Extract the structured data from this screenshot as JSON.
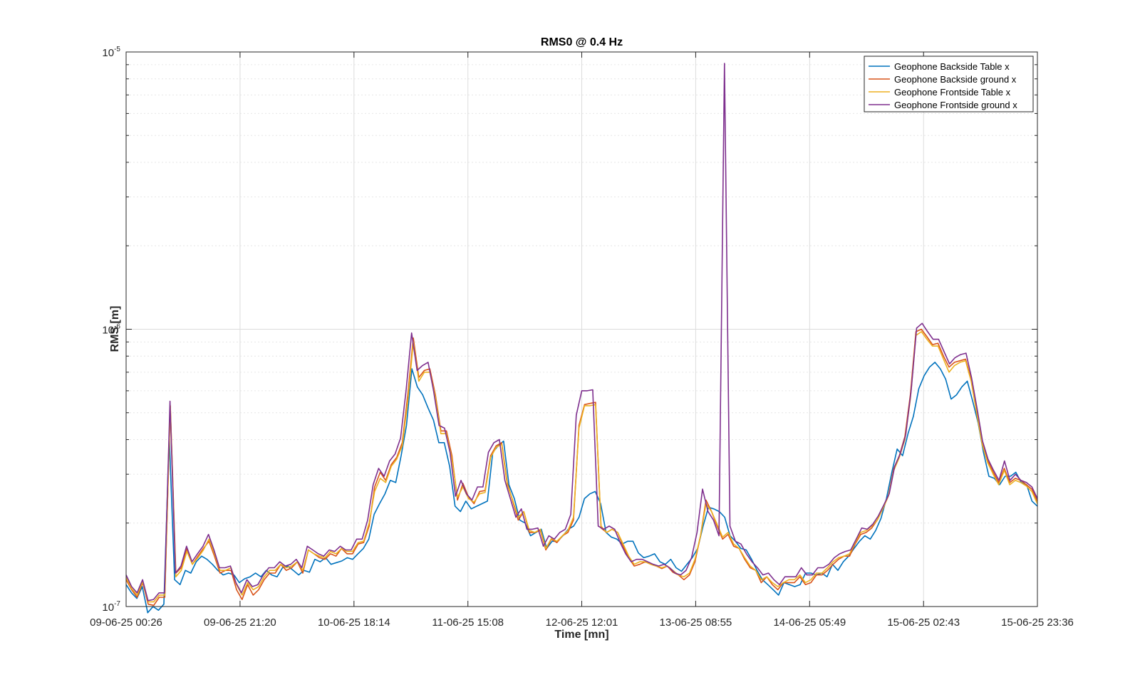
{
  "chart_data": {
    "type": "line",
    "title": "RMS0 @ 0.4 Hz",
    "xlabel": "Time [mn]",
    "ylabel": "RMS [m]",
    "y_scale": "log",
    "ylim": [
      1e-07,
      1e-05
    ],
    "y_ticks": [
      {
        "value": 1e-07,
        "base": "10",
        "exp": "-7"
      },
      {
        "value": 1e-06,
        "base": "10",
        "exp": "-6"
      },
      {
        "value": 1e-05,
        "base": "10",
        "exp": "-5"
      }
    ],
    "xlim": [
      "09-06-25 00:26",
      "15-06-25 23:36"
    ],
    "x_ticks": [
      "09-06-25 00:26",
      "09-06-25 21:20",
      "10-06-25 18:14",
      "11-06-25 15:08",
      "12-06-25 12:01",
      "13-06-25 08:55",
      "14-06-25 05:49",
      "15-06-25 02:43",
      "15-06-25 23:36"
    ],
    "grid": true,
    "minor_grid_y": true,
    "legend_position": "top-right",
    "x_sample_interval_minutes": 60,
    "series": [
      {
        "name": "Geophone Backside Table x",
        "color": "#0072BD",
        "values": [
          1.2e-07,
          1.12e-07,
          1.07e-07,
          1.18e-07,
          9.5e-08,
          1e-07,
          9.7e-08,
          1.02e-07,
          4.1e-07,
          1.25e-07,
          1.2e-07,
          1.35e-07,
          1.32e-07,
          1.45e-07,
          1.52e-07,
          1.48e-07,
          1.42e-07,
          1.35e-07,
          1.3e-07,
          1.32e-07,
          1.3e-07,
          1.22e-07,
          1.26e-07,
          1.28e-07,
          1.32e-07,
          1.28e-07,
          1.35e-07,
          1.3e-07,
          1.28e-07,
          1.38e-07,
          1.4e-07,
          1.35e-07,
          1.3e-07,
          1.35e-07,
          1.33e-07,
          1.48e-07,
          1.45e-07,
          1.5e-07,
          1.42e-07,
          1.44e-07,
          1.46e-07,
          1.5e-07,
          1.48e-07,
          1.55e-07,
          1.62e-07,
          1.75e-07,
          2.15e-07,
          2.35e-07,
          2.55e-07,
          2.85e-07,
          2.8e-07,
          3.5e-07,
          4.5e-07,
          7.2e-07,
          6.2e-07,
          5.8e-07,
          5.2e-07,
          4.7e-07,
          3.9e-07,
          3.9e-07,
          3.2e-07,
          2.3e-07,
          2.2e-07,
          2.4e-07,
          2.25e-07,
          2.3e-07,
          2.35e-07,
          2.4e-07,
          3.6e-07,
          3.8e-07,
          3.95e-07,
          2.75e-07,
          2.45e-07,
          2.05e-07,
          2e-07,
          1.8e-07,
          1.85e-07,
          1.9e-07,
          1.62e-07,
          1.72e-07,
          1.72e-07,
          1.8e-07,
          1.9e-07,
          1.95e-07,
          2.1e-07,
          2.45e-07,
          2.55e-07,
          2.6e-07,
          2.35e-07,
          1.85e-07,
          1.78e-07,
          1.75e-07,
          1.68e-07,
          1.72e-07,
          1.72e-07,
          1.56e-07,
          1.5e-07,
          1.52e-07,
          1.55e-07,
          1.45e-07,
          1.42e-07,
          1.48e-07,
          1.38e-07,
          1.34e-07,
          1.42e-07,
          1.5e-07,
          1.62e-07,
          1.95e-07,
          2.28e-07,
          2.25e-07,
          2.2e-07,
          2.1e-07,
          1.8e-07,
          1.72e-07,
          1.62e-07,
          1.6e-07,
          1.48e-07,
          1.35e-07,
          1.25e-07,
          1.2e-07,
          1.15e-07,
          1.1e-07,
          1.22e-07,
          1.2e-07,
          1.18e-07,
          1.2e-07,
          1.32e-07,
          1.32e-07,
          1.3e-07,
          1.32e-07,
          1.28e-07,
          1.42e-07,
          1.35e-07,
          1.45e-07,
          1.52e-07,
          1.62e-07,
          1.72e-07,
          1.8e-07,
          1.75e-07,
          1.88e-07,
          2.08e-07,
          2.45e-07,
          3.05e-07,
          3.7e-07,
          3.5e-07,
          4.2e-07,
          4.85e-07,
          6.1e-07,
          6.8e-07,
          7.3e-07,
          7.6e-07,
          7.2e-07,
          6.6e-07,
          5.6e-07,
          5.8e-07,
          6.2e-07,
          6.5e-07,
          5.5e-07,
          4.6e-07,
          3.6e-07,
          2.95e-07,
          2.9e-07,
          2.75e-07,
          2.95e-07,
          2.95e-07,
          3.05e-07,
          2.8e-07,
          2.75e-07,
          2.4e-07,
          2.3e-07
        ]
      },
      {
        "name": "Geophone Backside ground x",
        "color": "#D95319",
        "values": [
          1.25e-07,
          1.15e-07,
          1.08e-07,
          1.22e-07,
          1.02e-07,
          1.01e-07,
          1.08e-07,
          1.08e-07,
          5.3e-07,
          1.32e-07,
          1.38e-07,
          1.62e-07,
          1.42e-07,
          1.52e-07,
          1.62e-07,
          1.72e-07,
          1.52e-07,
          1.32e-07,
          1.35e-07,
          1.35e-07,
          1.15e-07,
          1.06e-07,
          1.2e-07,
          1.1e-07,
          1.15e-07,
          1.25e-07,
          1.32e-07,
          1.32e-07,
          1.42e-07,
          1.35e-07,
          1.38e-07,
          1.45e-07,
          1.32e-07,
          1.6e-07,
          1.55e-07,
          1.5e-07,
          1.48e-07,
          1.55e-07,
          1.52e-07,
          1.62e-07,
          1.55e-07,
          1.55e-07,
          1.68e-07,
          1.7e-07,
          1.95e-07,
          2.7e-07,
          3.05e-07,
          2.85e-07,
          3.25e-07,
          3.45e-07,
          3.9e-07,
          5.8e-07,
          9.3e-07,
          6.7e-07,
          7.1e-07,
          7.2e-07,
          5.8e-07,
          4.3e-07,
          4.3e-07,
          3.5e-07,
          2.42e-07,
          2.78e-07,
          2.48e-07,
          2.35e-07,
          2.6e-07,
          2.62e-07,
          3.5e-07,
          3.8e-07,
          3.9e-07,
          2.8e-07,
          2.4e-07,
          2.05e-07,
          2.2e-07,
          1.85e-07,
          1.85e-07,
          1.88e-07,
          1.6e-07,
          1.75e-07,
          1.7e-07,
          1.8e-07,
          1.85e-07,
          2.05e-07,
          4.5e-07,
          5.35e-07,
          5.4e-07,
          5.45e-07,
          1.92e-07,
          1.85e-07,
          1.9e-07,
          1.85e-07,
          1.65e-07,
          1.5e-07,
          1.4e-07,
          1.42e-07,
          1.45e-07,
          1.42e-07,
          1.4e-07,
          1.37e-07,
          1.4e-07,
          1.33e-07,
          1.3e-07,
          1.25e-07,
          1.3e-07,
          1.45e-07,
          1.8e-07,
          2.42e-07,
          2.2e-07,
          1.95e-07,
          1.75e-07,
          1.82e-07,
          1.65e-07,
          1.62e-07,
          1.48e-07,
          1.38e-07,
          1.35e-07,
          1.22e-07,
          1.28e-07,
          1.2e-07,
          1.15e-07,
          1.22e-07,
          1.22e-07,
          1.22e-07,
          1.28e-07,
          1.2e-07,
          1.22e-07,
          1.3e-07,
          1.3e-07,
          1.35e-07,
          1.42e-07,
          1.48e-07,
          1.52e-07,
          1.52e-07,
          1.68e-07,
          1.82e-07,
          1.85e-07,
          1.92e-07,
          2.05e-07,
          2.25e-07,
          2.5e-07,
          3.15e-07,
          3.5e-07,
          4.1e-07,
          5.8e-07,
          9.8e-07,
          1e-06,
          9.4e-07,
          8.8e-07,
          8.9e-07,
          8e-07,
          7.3e-07,
          7.6e-07,
          7.7e-07,
          7.8e-07,
          6.6e-07,
          5.1e-07,
          3.9e-07,
          3.35e-07,
          3.05e-07,
          2.8e-07,
          3.15e-07,
          2.8e-07,
          2.9e-07,
          2.85e-07,
          2.75e-07,
          2.65e-07,
          2.4e-07
        ]
      },
      {
        "name": "Geophone Frontside Table x",
        "color": "#EDB120",
        "values": [
          1.27e-07,
          1.16e-07,
          1.1e-07,
          1.23e-07,
          1.04e-07,
          1.04e-07,
          1.1e-07,
          1.1e-07,
          5.3e-07,
          1.28e-07,
          1.35e-07,
          1.58e-07,
          1.42e-07,
          1.5e-07,
          1.6e-07,
          1.75e-07,
          1.55e-07,
          1.35e-07,
          1.35e-07,
          1.38e-07,
          1.2e-07,
          1.1e-07,
          1.22e-07,
          1.15e-07,
          1.18e-07,
          1.28e-07,
          1.35e-07,
          1.35e-07,
          1.42e-07,
          1.38e-07,
          1.4e-07,
          1.45e-07,
          1.35e-07,
          1.6e-07,
          1.55e-07,
          1.52e-07,
          1.5e-07,
          1.58e-07,
          1.55e-07,
          1.62e-07,
          1.58e-07,
          1.58e-07,
          1.7e-07,
          1.72e-07,
          2e-07,
          2.6e-07,
          2.9e-07,
          2.8e-07,
          3.2e-07,
          3.4e-07,
          3.8e-07,
          5.5e-07,
          9e-07,
          6.5e-07,
          7e-07,
          7e-07,
          5.7e-07,
          4.2e-07,
          4.2e-07,
          3.4e-07,
          2.48e-07,
          2.7e-07,
          2.45e-07,
          2.38e-07,
          2.55e-07,
          2.58e-07,
          3.45e-07,
          3.75e-07,
          3.85e-07,
          2.75e-07,
          2.42e-07,
          2.1e-07,
          2.2e-07,
          1.88e-07,
          1.85e-07,
          1.9e-07,
          1.62e-07,
          1.76e-07,
          1.72e-07,
          1.8e-07,
          1.88e-07,
          2.1e-07,
          4.4e-07,
          5.3e-07,
          5.3e-07,
          5.35e-07,
          1.95e-07,
          1.85e-07,
          1.9e-07,
          1.85e-07,
          1.68e-07,
          1.52e-07,
          1.42e-07,
          1.45e-07,
          1.45e-07,
          1.42e-07,
          1.4e-07,
          1.38e-07,
          1.4e-07,
          1.35e-07,
          1.3e-07,
          1.28e-07,
          1.32e-07,
          1.48e-07,
          1.8e-07,
          2.35e-07,
          2.2e-07,
          1.98e-07,
          1.78e-07,
          1.85e-07,
          1.68e-07,
          1.62e-07,
          1.5e-07,
          1.4e-07,
          1.35e-07,
          1.25e-07,
          1.28e-07,
          1.22e-07,
          1.18e-07,
          1.22e-07,
          1.25e-07,
          1.25e-07,
          1.3e-07,
          1.22e-07,
          1.25e-07,
          1.32e-07,
          1.32e-07,
          1.38e-07,
          1.45e-07,
          1.5e-07,
          1.52e-07,
          1.55e-07,
          1.7e-07,
          1.85e-07,
          1.88e-07,
          1.95e-07,
          2.05e-07,
          2.25e-07,
          2.5e-07,
          3.1e-07,
          3.45e-07,
          4e-07,
          5.6e-07,
          9.5e-07,
          9.8e-07,
          9.2e-07,
          8.7e-07,
          8.7e-07,
          7.8e-07,
          7e-07,
          7.4e-07,
          7.6e-07,
          7.7e-07,
          6.5e-07,
          5e-07,
          3.85e-07,
          3.3e-07,
          3e-07,
          2.75e-07,
          3.1e-07,
          2.75e-07,
          2.85e-07,
          2.8e-07,
          2.72e-07,
          2.6e-07,
          2.35e-07
        ]
      },
      {
        "name": "Geophone Frontside ground x",
        "color": "#7E2F8E",
        "values": [
          1.3e-07,
          1.18e-07,
          1.12e-07,
          1.25e-07,
          1.05e-07,
          1.06e-07,
          1.12e-07,
          1.12e-07,
          5.5e-07,
          1.32e-07,
          1.4e-07,
          1.65e-07,
          1.45e-07,
          1.55e-07,
          1.65e-07,
          1.82e-07,
          1.6e-07,
          1.38e-07,
          1.38e-07,
          1.4e-07,
          1.22e-07,
          1.12e-07,
          1.25e-07,
          1.18e-07,
          1.2e-07,
          1.3e-07,
          1.38e-07,
          1.38e-07,
          1.45e-07,
          1.4e-07,
          1.42e-07,
          1.48e-07,
          1.38e-07,
          1.65e-07,
          1.6e-07,
          1.55e-07,
          1.52e-07,
          1.6e-07,
          1.58e-07,
          1.65e-07,
          1.6e-07,
          1.6e-07,
          1.75e-07,
          1.75e-07,
          2.05e-07,
          2.75e-07,
          3.15e-07,
          2.95e-07,
          3.35e-07,
          3.55e-07,
          4.05e-07,
          6e-07,
          9.7e-07,
          7.1e-07,
          7.4e-07,
          7.6e-07,
          6e-07,
          4.5e-07,
          4.4e-07,
          3.6e-07,
          2.5e-07,
          2.85e-07,
          2.55e-07,
          2.42e-07,
          2.7e-07,
          2.7e-07,
          3.6e-07,
          3.9e-07,
          4e-07,
          2.85e-07,
          2.45e-07,
          2.1e-07,
          2.25e-07,
          1.9e-07,
          1.9e-07,
          1.92e-07,
          1.65e-07,
          1.8e-07,
          1.75e-07,
          1.85e-07,
          1.9e-07,
          2.15e-07,
          4.9e-07,
          6e-07,
          6e-07,
          6.05e-07,
          1.95e-07,
          1.9e-07,
          1.95e-07,
          1.9e-07,
          1.7e-07,
          1.55e-07,
          1.45e-07,
          1.48e-07,
          1.48e-07,
          1.45e-07,
          1.42e-07,
          1.4e-07,
          1.42e-07,
          1.38e-07,
          1.32e-07,
          1.3e-07,
          1.35e-07,
          1.5e-07,
          1.85e-07,
          2.65e-07,
          2.2e-07,
          2.05e-07,
          1.8e-07,
          9.1e-06,
          1.95e-07,
          1.72e-07,
          1.68e-07,
          1.55e-07,
          1.45e-07,
          1.38e-07,
          1.3e-07,
          1.32e-07,
          1.25e-07,
          1.2e-07,
          1.28e-07,
          1.28e-07,
          1.28e-07,
          1.38e-07,
          1.3e-07,
          1.3e-07,
          1.38e-07,
          1.38e-07,
          1.42e-07,
          1.5e-07,
          1.55e-07,
          1.58e-07,
          1.6e-07,
          1.75e-07,
          1.92e-07,
          1.9e-07,
          1.98e-07,
          2.12e-07,
          2.32e-07,
          2.55e-07,
          3.2e-07,
          3.55e-07,
          4.15e-07,
          6e-07,
          1.01e-06,
          1.05e-06,
          9.8e-07,
          9.2e-07,
          9.2e-07,
          8.3e-07,
          7.5e-07,
          7.9e-07,
          8.1e-07,
          8.2e-07,
          6.7e-07,
          5.2e-07,
          3.95e-07,
          3.4e-07,
          3.1e-07,
          2.85e-07,
          3.35e-07,
          2.85e-07,
          3e-07,
          2.85e-07,
          2.8e-07,
          2.7e-07,
          2.45e-07
        ]
      }
    ]
  }
}
